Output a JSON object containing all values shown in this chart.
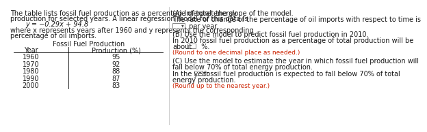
{
  "left_text_line1": "The table lists fossil fuel production as a percentage of total energy",
  "left_text_line2": "production for selected years. A linear regression model for this data is",
  "equation": "y = −0.29x + 94.8",
  "left_text_line3": "where x represents years after 1960 and y represents the corresponding",
  "left_text_line4": "percentage of oil imports.",
  "table_title": "Fossil Fuel Production",
  "col_header_year": "Year",
  "col_header_prod": "Production (%)",
  "table_data": [
    [
      "1960",
      "95"
    ],
    [
      "1970",
      "92"
    ],
    [
      "1980",
      "88"
    ],
    [
      "1990",
      "87"
    ],
    [
      "2000",
      "83"
    ]
  ],
  "right_A_title": "(A) Interpret the slope of the model.",
  "right_A_text1": "The rate of change of the percentage of oil imports with respect to time is",
  "right_A_text2": " per year.",
  "right_B_title": "(B) Use the model to predict fossil fuel production in 2010.",
  "right_B_text1": "In 2010 fossil fuel production as a percentage of total production will be",
  "right_B_text2_pre": "about",
  "right_B_text2_post": "  %.",
  "right_B_note": "(Round to one decimal place as needed.)",
  "right_C_title1": "(C) Use the model to estimate the year in which fossil fuel production will",
  "right_C_title2": "fall below 70% of total energy production.",
  "right_C_text1_pre": "In the year",
  "right_C_text1_post": "fossil fuel production is expected to fall below 70% of total",
  "right_C_text2": "energy production.",
  "right_C_note": "(Round up to the nearest year.)",
  "text_color": "#1a1a1a",
  "note_color": "#cc2200",
  "divider_color": "#cccccc",
  "font_size": 7,
  "note_font_size": 6.5
}
